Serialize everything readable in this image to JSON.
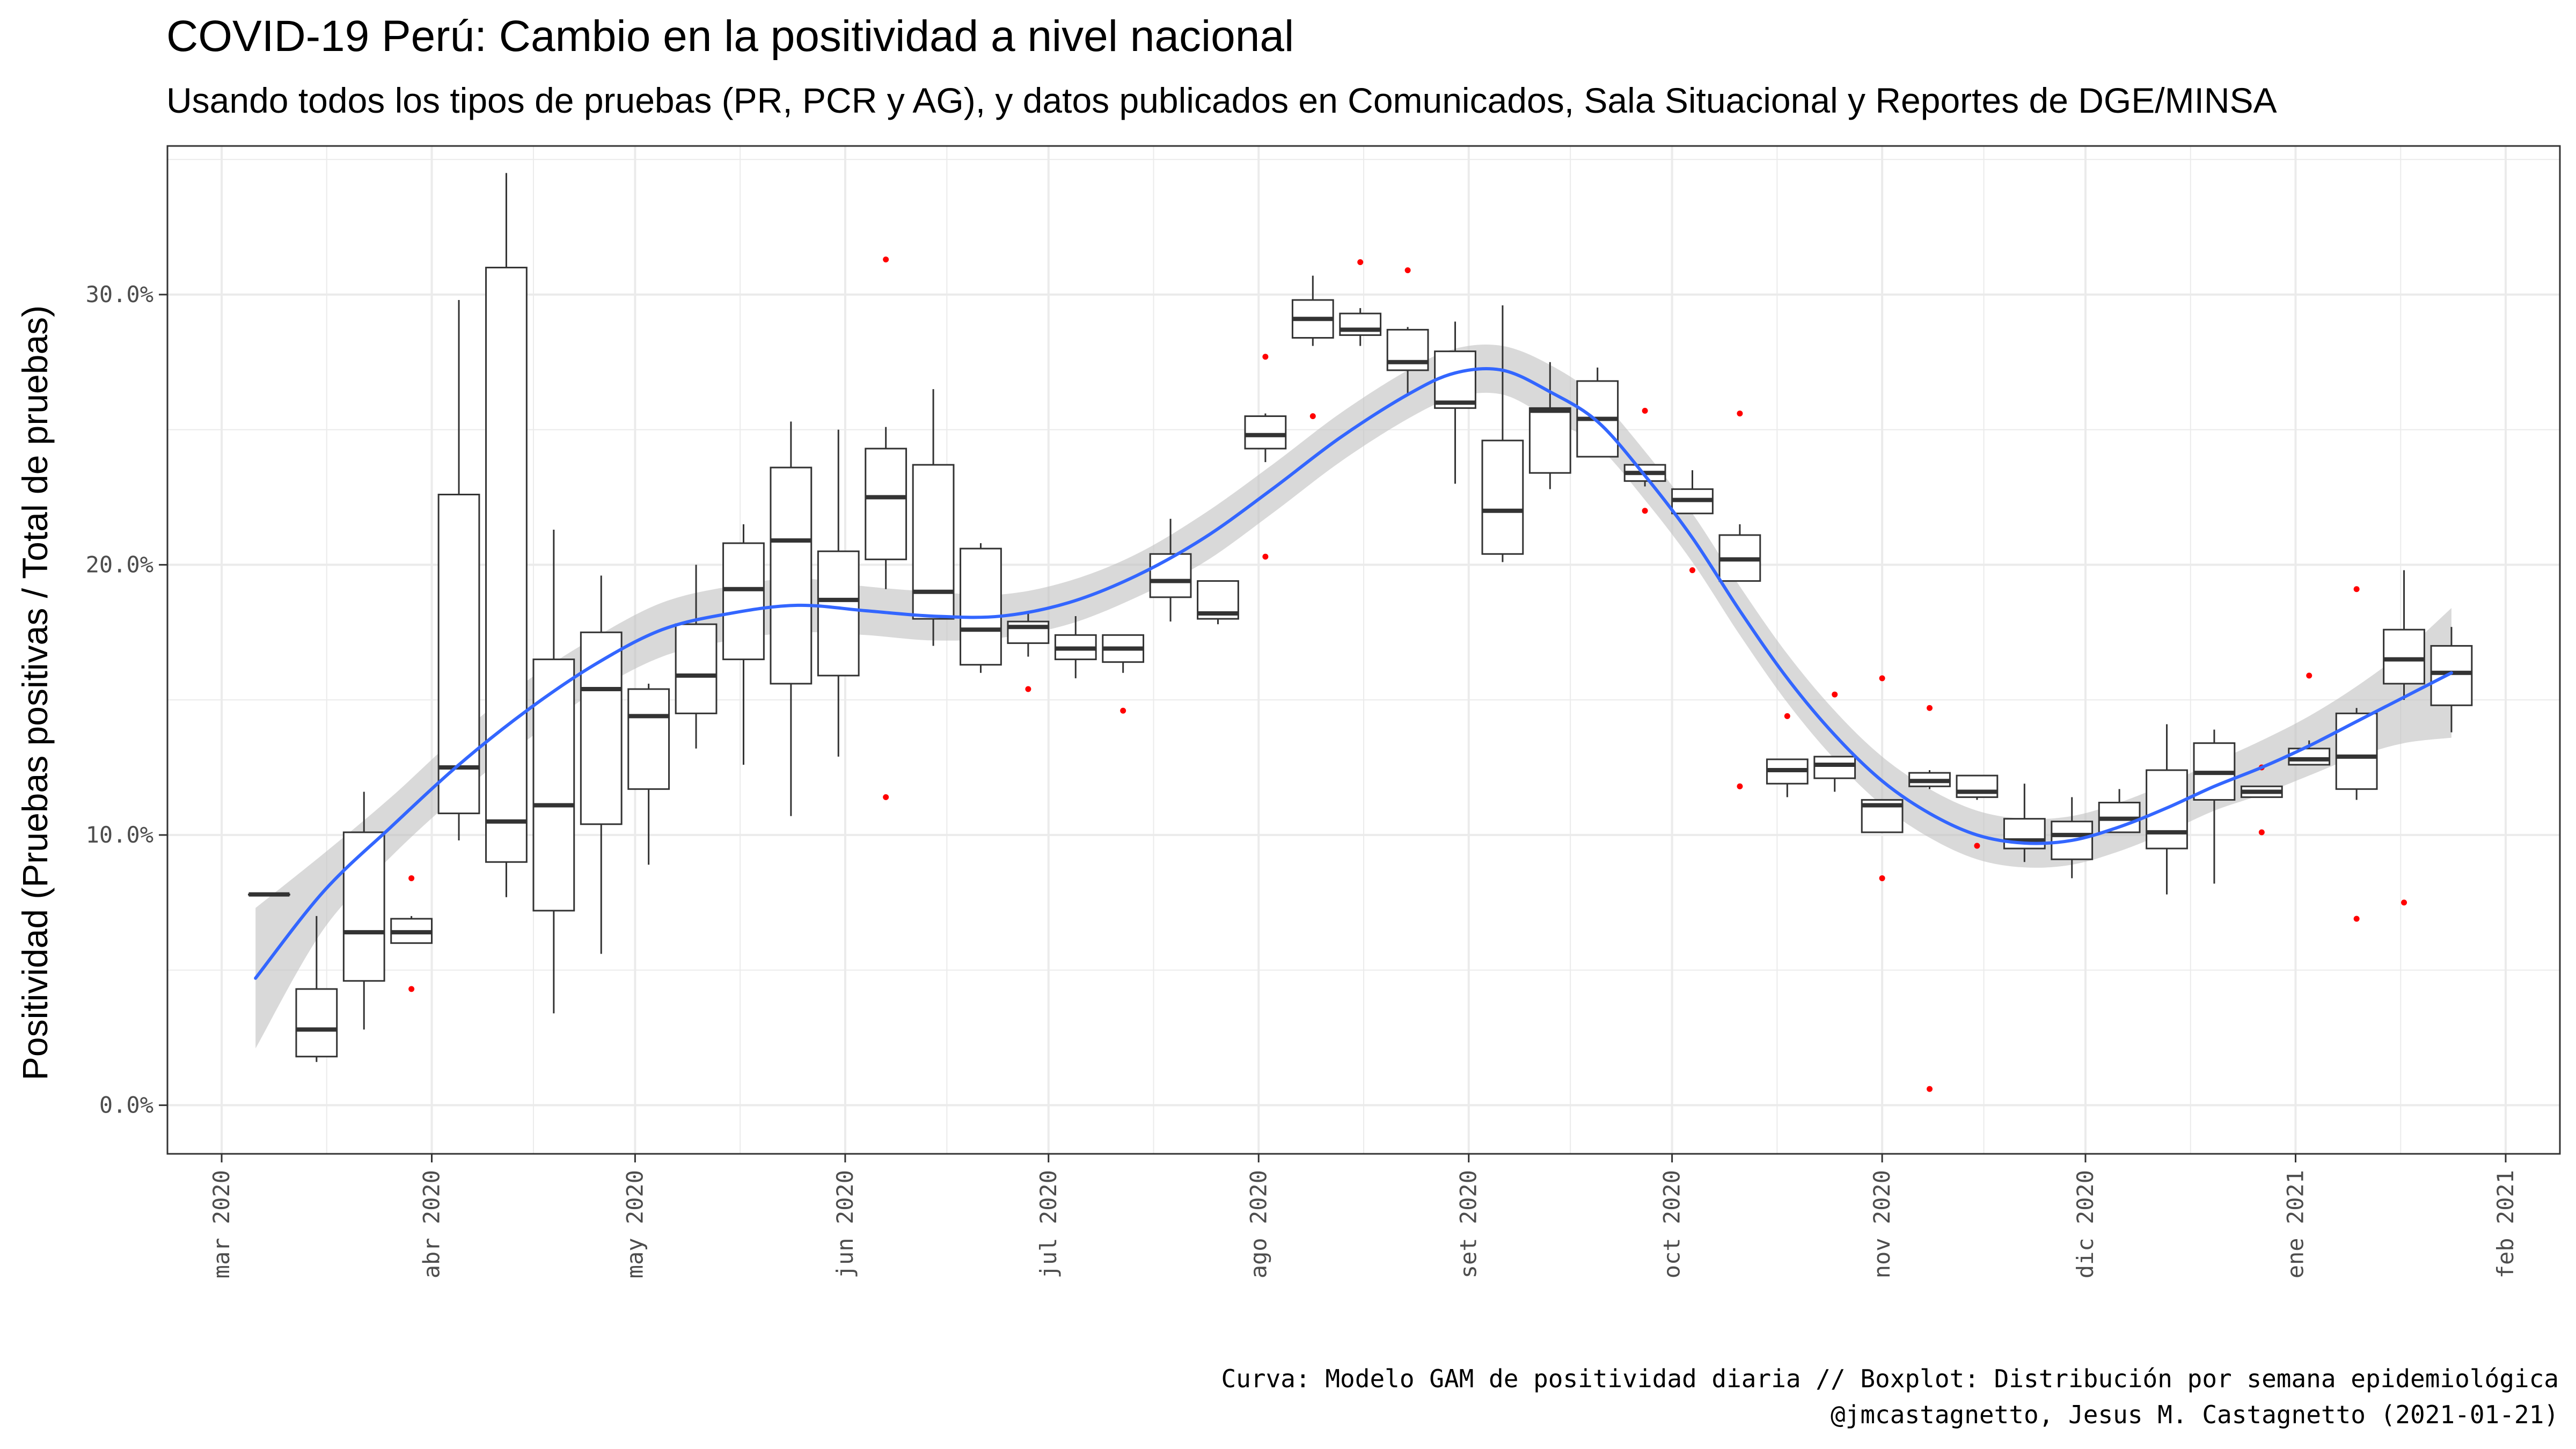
{
  "chart_data": {
    "type": "boxplot",
    "title": "COVID-19 Perú: Cambio en la positividad a nivel nacional",
    "subtitle": "Usando todos los tipos de pruebas (PR, PCR y AG), y datos publicados en Comunicados, Sala Situacional y Reportes de DGE/MINSA",
    "ylabel": "Positividad (Pruebas positivas / Total de pruebas)",
    "xlabel": "",
    "caption_lines": [
      "Curva: Modelo GAM de positividad diaria // Boxplot: Distribución por semana epidemiológica",
      "@jmcastagnetto, Jesus M. Castagnetto (2021-01-21)"
    ],
    "x_ticks": [
      {
        "date": "2020-03-01",
        "label": "mar 2020"
      },
      {
        "date": "2020-04-01",
        "label": "abr 2020"
      },
      {
        "date": "2020-05-01",
        "label": "may 2020"
      },
      {
        "date": "2020-06-01",
        "label": "jun 2020"
      },
      {
        "date": "2020-07-01",
        "label": "jul 2020"
      },
      {
        "date": "2020-08-01",
        "label": "ago 2020"
      },
      {
        "date": "2020-09-01",
        "label": "set 2020"
      },
      {
        "date": "2020-10-01",
        "label": "oct 2020"
      },
      {
        "date": "2020-11-01",
        "label": "nov 2020"
      },
      {
        "date": "2020-12-01",
        "label": "dic 2020"
      },
      {
        "date": "2021-01-01",
        "label": "ene 2021"
      },
      {
        "date": "2021-02-01",
        "label": "feb 2021"
      }
    ],
    "y_ticks": [
      {
        "value": 0,
        "label": "0.0%"
      },
      {
        "value": 10,
        "label": "10.0%"
      },
      {
        "value": 20,
        "label": "20.0%"
      },
      {
        "value": 30,
        "label": "30.0%"
      }
    ],
    "xlim": [
      "2020-02-22",
      "2021-02-09"
    ],
    "ylim": [
      -1.8,
      35.5
    ],
    "grid": true,
    "colors": {
      "box_stroke": "#333333",
      "outlier": "#ff0000",
      "smooth_line": "#3366ff",
      "ribbon": "#bfbfbf",
      "grid": "#ebebeb",
      "panel_border": "#333333"
    },
    "boxes": [
      {
        "date": "2020-03-08",
        "whisker_low": 7.8,
        "q1": 7.8,
        "median": 7.8,
        "q3": 7.8,
        "whisker_high": 7.8,
        "outliers": []
      },
      {
        "date": "2020-03-15",
        "whisker_low": 1.6,
        "q1": 1.8,
        "median": 2.8,
        "q3": 4.3,
        "whisker_high": 7.0,
        "outliers": []
      },
      {
        "date": "2020-03-22",
        "whisker_low": 2.8,
        "q1": 4.6,
        "median": 6.4,
        "q3": 10.1,
        "whisker_high": 11.6,
        "outliers": []
      },
      {
        "date": "2020-03-29",
        "whisker_low": 6.0,
        "q1": 6.0,
        "median": 6.4,
        "q3": 6.9,
        "whisker_high": 7.0,
        "outliers": [
          8.4,
          4.3
        ]
      },
      {
        "date": "2020-04-05",
        "whisker_low": 9.8,
        "q1": 10.8,
        "median": 12.5,
        "q3": 22.6,
        "whisker_high": 29.8,
        "outliers": []
      },
      {
        "date": "2020-04-12",
        "whisker_low": 7.7,
        "q1": 9.0,
        "median": 10.5,
        "q3": 31.0,
        "whisker_high": 34.5,
        "outliers": []
      },
      {
        "date": "2020-04-19",
        "whisker_low": 3.4,
        "q1": 7.2,
        "median": 11.1,
        "q3": 16.5,
        "whisker_high": 21.3,
        "outliers": []
      },
      {
        "date": "2020-04-26",
        "whisker_low": 5.6,
        "q1": 10.4,
        "median": 15.4,
        "q3": 17.5,
        "whisker_high": 19.6,
        "outliers": []
      },
      {
        "date": "2020-05-03",
        "whisker_low": 8.9,
        "q1": 11.7,
        "median": 14.4,
        "q3": 15.4,
        "whisker_high": 15.6,
        "outliers": []
      },
      {
        "date": "2020-05-10",
        "whisker_low": 13.2,
        "q1": 14.5,
        "median": 15.9,
        "q3": 17.8,
        "whisker_high": 20.0,
        "outliers": []
      },
      {
        "date": "2020-05-17",
        "whisker_low": 12.6,
        "q1": 16.5,
        "median": 19.1,
        "q3": 20.8,
        "whisker_high": 21.5,
        "outliers": []
      },
      {
        "date": "2020-05-24",
        "whisker_low": 10.7,
        "q1": 15.6,
        "median": 20.9,
        "q3": 23.6,
        "whisker_high": 25.3,
        "outliers": []
      },
      {
        "date": "2020-05-31",
        "whisker_low": 12.9,
        "q1": 15.9,
        "median": 18.7,
        "q3": 20.5,
        "whisker_high": 25.0,
        "outliers": []
      },
      {
        "date": "2020-06-07",
        "whisker_low": 19.1,
        "q1": 20.2,
        "median": 22.5,
        "q3": 24.3,
        "whisker_high": 25.1,
        "outliers": [
          31.3,
          11.4
        ]
      },
      {
        "date": "2020-06-14",
        "whisker_low": 17.0,
        "q1": 18.0,
        "median": 19.0,
        "q3": 23.7,
        "whisker_high": 26.5,
        "outliers": []
      },
      {
        "date": "2020-06-21",
        "whisker_low": 16.0,
        "q1": 16.3,
        "median": 17.6,
        "q3": 20.6,
        "whisker_high": 20.8,
        "outliers": []
      },
      {
        "date": "2020-06-28",
        "whisker_low": 16.6,
        "q1": 17.1,
        "median": 17.7,
        "q3": 17.9,
        "whisker_high": 18.2,
        "outliers": [
          15.4
        ]
      },
      {
        "date": "2020-07-05",
        "whisker_low": 15.8,
        "q1": 16.5,
        "median": 16.9,
        "q3": 17.4,
        "whisker_high": 18.1,
        "outliers": []
      },
      {
        "date": "2020-07-12",
        "whisker_low": 16.0,
        "q1": 16.4,
        "median": 16.9,
        "q3": 17.4,
        "whisker_high": 17.4,
        "outliers": [
          14.6
        ]
      },
      {
        "date": "2020-07-19",
        "whisker_low": 17.9,
        "q1": 18.8,
        "median": 19.4,
        "q3": 20.4,
        "whisker_high": 21.7,
        "outliers": []
      },
      {
        "date": "2020-07-26",
        "whisker_low": 17.8,
        "q1": 18.0,
        "median": 18.2,
        "q3": 19.4,
        "whisker_high": 19.4,
        "outliers": []
      },
      {
        "date": "2020-08-02",
        "whisker_low": 23.8,
        "q1": 24.3,
        "median": 24.8,
        "q3": 25.5,
        "whisker_high": 25.6,
        "outliers": [
          27.7,
          20.3
        ]
      },
      {
        "date": "2020-08-09",
        "whisker_low": 28.1,
        "q1": 28.4,
        "median": 29.1,
        "q3": 29.8,
        "whisker_high": 30.7,
        "outliers": [
          25.5
        ]
      },
      {
        "date": "2020-08-16",
        "whisker_low": 28.1,
        "q1": 28.5,
        "median": 28.7,
        "q3": 29.3,
        "whisker_high": 29.5,
        "outliers": [
          31.2
        ]
      },
      {
        "date": "2020-08-23",
        "whisker_low": 26.3,
        "q1": 27.2,
        "median": 27.5,
        "q3": 28.7,
        "whisker_high": 28.8,
        "outliers": [
          30.9
        ]
      },
      {
        "date": "2020-08-30",
        "whisker_low": 23.0,
        "q1": 25.8,
        "median": 26.0,
        "q3": 27.9,
        "whisker_high": 29.0,
        "outliers": []
      },
      {
        "date": "2020-09-06",
        "whisker_low": 20.1,
        "q1": 20.4,
        "median": 22.0,
        "q3": 24.6,
        "whisker_high": 29.6,
        "outliers": []
      },
      {
        "date": "2020-09-13",
        "whisker_low": 22.8,
        "q1": 23.4,
        "median": 25.7,
        "q3": 25.8,
        "whisker_high": 27.5,
        "outliers": []
      },
      {
        "date": "2020-09-20",
        "whisker_low": 24.0,
        "q1": 24.0,
        "median": 25.4,
        "q3": 26.8,
        "whisker_high": 27.3,
        "outliers": []
      },
      {
        "date": "2020-09-27",
        "whisker_low": 22.9,
        "q1": 23.1,
        "median": 23.4,
        "q3": 23.7,
        "whisker_high": 23.7,
        "outliers": [
          25.7,
          22.0
        ]
      },
      {
        "date": "2020-10-04",
        "whisker_low": 21.9,
        "q1": 21.9,
        "median": 22.4,
        "q3": 22.8,
        "whisker_high": 23.5,
        "outliers": [
          19.8
        ]
      },
      {
        "date": "2020-10-11",
        "whisker_low": 19.4,
        "q1": 19.4,
        "median": 20.2,
        "q3": 21.1,
        "whisker_high": 21.5,
        "outliers": [
          25.6,
          11.8
        ]
      },
      {
        "date": "2020-10-18",
        "whisker_low": 11.4,
        "q1": 11.9,
        "median": 12.4,
        "q3": 12.8,
        "whisker_high": 12.8,
        "outliers": [
          14.4
        ]
      },
      {
        "date": "2020-10-25",
        "whisker_low": 11.6,
        "q1": 12.1,
        "median": 12.6,
        "q3": 12.9,
        "whisker_high": 12.9,
        "outliers": [
          15.2
        ]
      },
      {
        "date": "2020-11-01",
        "whisker_low": 10.1,
        "q1": 10.1,
        "median": 11.1,
        "q3": 11.3,
        "whisker_high": 11.3,
        "outliers": [
          15.8,
          8.4
        ]
      },
      {
        "date": "2020-11-08",
        "whisker_low": 11.7,
        "q1": 11.8,
        "median": 12.0,
        "q3": 12.3,
        "whisker_high": 12.4,
        "outliers": [
          14.7,
          0.6
        ]
      },
      {
        "date": "2020-11-15",
        "whisker_low": 11.3,
        "q1": 11.4,
        "median": 11.6,
        "q3": 12.2,
        "whisker_high": 12.2,
        "outliers": [
          9.6
        ]
      },
      {
        "date": "2020-11-22",
        "whisker_low": 9.0,
        "q1": 9.5,
        "median": 9.8,
        "q3": 10.6,
        "whisker_high": 11.9,
        "outliers": []
      },
      {
        "date": "2020-11-29",
        "whisker_low": 8.4,
        "q1": 9.1,
        "median": 10.0,
        "q3": 10.5,
        "whisker_high": 11.4,
        "outliers": []
      },
      {
        "date": "2020-12-06",
        "whisker_low": 10.1,
        "q1": 10.1,
        "median": 10.6,
        "q3": 11.2,
        "whisker_high": 11.7,
        "outliers": []
      },
      {
        "date": "2020-12-13",
        "whisker_low": 7.8,
        "q1": 9.5,
        "median": 10.1,
        "q3": 12.4,
        "whisker_high": 14.1,
        "outliers": []
      },
      {
        "date": "2020-12-20",
        "whisker_low": 8.2,
        "q1": 11.3,
        "median": 12.3,
        "q3": 13.4,
        "whisker_high": 13.9,
        "outliers": []
      },
      {
        "date": "2020-12-27",
        "whisker_low": 11.4,
        "q1": 11.4,
        "median": 11.6,
        "q3": 11.8,
        "whisker_high": 11.8,
        "outliers": [
          12.5,
          10.1
        ]
      },
      {
        "date": "2021-01-03",
        "whisker_low": 12.6,
        "q1": 12.6,
        "median": 12.8,
        "q3": 13.2,
        "whisker_high": 13.5,
        "outliers": [
          15.9
        ]
      },
      {
        "date": "2021-01-10",
        "whisker_low": 11.3,
        "q1": 11.7,
        "median": 12.9,
        "q3": 14.5,
        "whisker_high": 14.7,
        "outliers": [
          19.1,
          6.9
        ]
      },
      {
        "date": "2021-01-17",
        "whisker_low": 15.0,
        "q1": 15.6,
        "median": 16.5,
        "q3": 17.6,
        "whisker_high": 19.8,
        "outliers": [
          7.5
        ]
      },
      {
        "date": "2021-01-24",
        "whisker_low": 13.8,
        "q1": 14.8,
        "median": 16.0,
        "q3": 17.0,
        "whisker_high": 17.7,
        "outliers": []
      }
    ],
    "smooth_curve": [
      {
        "date": "2020-03-06",
        "fit": 4.7,
        "lo": 2.1,
        "hi": 7.3
      },
      {
        "date": "2020-03-16",
        "fit": 7.9,
        "lo": 6.5,
        "hi": 9.3
      },
      {
        "date": "2020-03-26",
        "fit": 10.3,
        "lo": 9.2,
        "hi": 11.4
      },
      {
        "date": "2020-04-05",
        "fit": 12.6,
        "lo": 11.5,
        "hi": 13.7
      },
      {
        "date": "2020-04-15",
        "fit": 14.6,
        "lo": 13.5,
        "hi": 15.7
      },
      {
        "date": "2020-04-25",
        "fit": 16.3,
        "lo": 15.3,
        "hi": 17.3
      },
      {
        "date": "2020-05-05",
        "fit": 17.6,
        "lo": 16.6,
        "hi": 18.6
      },
      {
        "date": "2020-05-15",
        "fit": 18.2,
        "lo": 17.2,
        "hi": 19.2
      },
      {
        "date": "2020-05-25",
        "fit": 18.5,
        "lo": 17.5,
        "hi": 19.5
      },
      {
        "date": "2020-06-04",
        "fit": 18.3,
        "lo": 17.4,
        "hi": 19.2
      },
      {
        "date": "2020-06-14",
        "fit": 18.1,
        "lo": 17.2,
        "hi": 19.0
      },
      {
        "date": "2020-06-24",
        "fit": 18.1,
        "lo": 17.3,
        "hi": 18.9
      },
      {
        "date": "2020-07-04",
        "fit": 18.6,
        "lo": 17.8,
        "hi": 19.4
      },
      {
        "date": "2020-07-14",
        "fit": 19.6,
        "lo": 18.8,
        "hi": 20.4
      },
      {
        "date": "2020-07-24",
        "fit": 21.0,
        "lo": 20.1,
        "hi": 21.9
      },
      {
        "date": "2020-08-03",
        "fit": 22.8,
        "lo": 21.9,
        "hi": 23.7
      },
      {
        "date": "2020-08-13",
        "fit": 24.7,
        "lo": 23.8,
        "hi": 25.6
      },
      {
        "date": "2020-08-23",
        "fit": 26.3,
        "lo": 25.4,
        "hi": 27.2
      },
      {
        "date": "2020-08-30",
        "fit": 27.1,
        "lo": 26.2,
        "hi": 28.0
      },
      {
        "date": "2020-09-06",
        "fit": 27.2,
        "lo": 26.3,
        "hi": 28.1
      },
      {
        "date": "2020-09-13",
        "fit": 26.4,
        "lo": 25.4,
        "hi": 27.4
      },
      {
        "date": "2020-09-20",
        "fit": 25.3,
        "lo": 24.4,
        "hi": 26.2
      },
      {
        "date": "2020-09-27",
        "fit": 23.3,
        "lo": 22.4,
        "hi": 24.2
      },
      {
        "date": "2020-10-04",
        "fit": 21.0,
        "lo": 20.1,
        "hi": 21.9
      },
      {
        "date": "2020-10-11",
        "fit": 18.3,
        "lo": 17.4,
        "hi": 19.2
      },
      {
        "date": "2020-10-18",
        "fit": 15.8,
        "lo": 14.9,
        "hi": 16.7
      },
      {
        "date": "2020-10-25",
        "fit": 13.7,
        "lo": 12.8,
        "hi": 14.6
      },
      {
        "date": "2020-11-01",
        "fit": 12.0,
        "lo": 11.1,
        "hi": 12.9
      },
      {
        "date": "2020-11-08",
        "fit": 10.8,
        "lo": 9.9,
        "hi": 11.7
      },
      {
        "date": "2020-11-15",
        "fit": 10.0,
        "lo": 9.1,
        "hi": 10.9
      },
      {
        "date": "2020-11-22",
        "fit": 9.7,
        "lo": 8.8,
        "hi": 10.6
      },
      {
        "date": "2020-11-29",
        "fit": 9.8,
        "lo": 8.9,
        "hi": 10.7
      },
      {
        "date": "2020-12-06",
        "fit": 10.3,
        "lo": 9.4,
        "hi": 11.2
      },
      {
        "date": "2020-12-13",
        "fit": 11.0,
        "lo": 10.1,
        "hi": 11.9
      },
      {
        "date": "2020-12-20",
        "fit": 11.8,
        "lo": 10.9,
        "hi": 12.7
      },
      {
        "date": "2020-12-27",
        "fit": 12.5,
        "lo": 11.5,
        "hi": 13.5
      },
      {
        "date": "2021-01-03",
        "fit": 13.3,
        "lo": 12.2,
        "hi": 14.4
      },
      {
        "date": "2021-01-10",
        "fit": 14.2,
        "lo": 12.9,
        "hi": 15.5
      },
      {
        "date": "2021-01-17",
        "fit": 15.1,
        "lo": 13.4,
        "hi": 16.8
      },
      {
        "date": "2021-01-24",
        "fit": 16.0,
        "lo": 13.6,
        "hi": 18.4
      }
    ]
  }
}
